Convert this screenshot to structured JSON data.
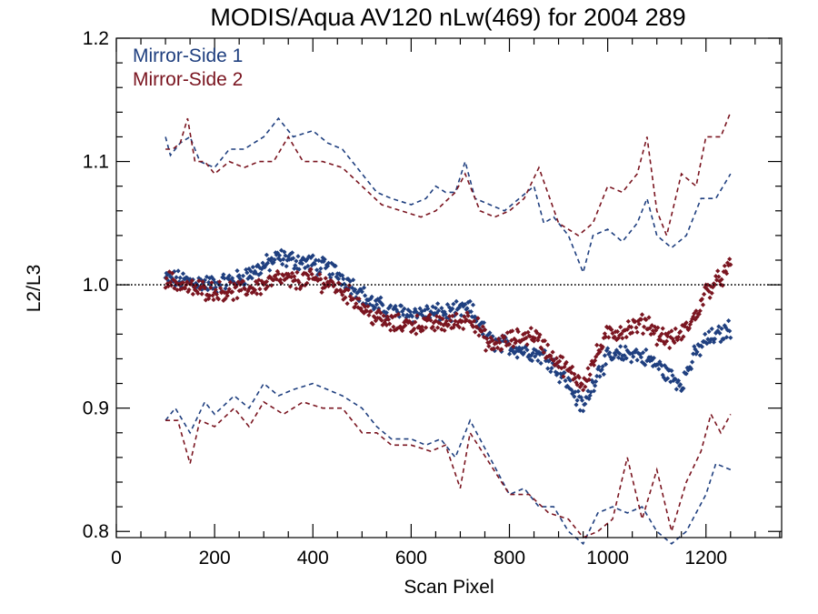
{
  "chart_data": {
    "type": "scatter",
    "title": "MODIS/Aqua AV120 nLw(469) for 2004 289",
    "xlabel": "Scan Pixel",
    "ylabel": "L2/L3",
    "xlim": [
      0,
      1354
    ],
    "ylim": [
      0.795,
      1.2
    ],
    "x_ticks": [
      0,
      200,
      400,
      600,
      800,
      1000,
      1200
    ],
    "x_tick_labels": [
      "0",
      "200",
      "400",
      "600",
      "800",
      "1000",
      "1200"
    ],
    "y_ticks": [
      0.8,
      0.9,
      1.0,
      1.1,
      1.2
    ],
    "y_tick_labels": [
      "0.8",
      "0.9",
      "1.0",
      "1.1",
      "1.2"
    ],
    "reference_line": {
      "y": 1.0,
      "style": "dotted"
    },
    "legend_position": "top-left",
    "grid": false,
    "series": [
      {
        "name": "Mirror-Side 1",
        "color": "#1f3f7f",
        "marker": "diamond",
        "mean": {
          "x": [
            100,
            150,
            200,
            250,
            300,
            330,
            360,
            400,
            440,
            480,
            520,
            560,
            600,
            650,
            700,
            720,
            760,
            800,
            850,
            880,
            920,
            950,
            980,
            1000,
            1050,
            1080,
            1100,
            1130,
            1150,
            1180,
            1200,
            1230,
            1250
          ],
          "y": [
            1.005,
            1.003,
            1.0,
            1.005,
            1.015,
            1.022,
            1.02,
            1.017,
            1.012,
            1.0,
            0.985,
            0.978,
            0.977,
            0.977,
            0.978,
            0.98,
            0.955,
            0.95,
            0.945,
            0.94,
            0.92,
            0.9,
            0.93,
            0.94,
            0.945,
            0.94,
            0.935,
            0.925,
            0.92,
            0.945,
            0.955,
            0.96,
            0.965
          ]
        },
        "upper_bound": {
          "x": [
            100,
            110,
            130,
            150,
            170,
            200,
            230,
            260,
            300,
            330,
            360,
            400,
            430,
            460,
            500,
            530,
            560,
            600,
            630,
            650,
            670,
            690,
            710,
            730,
            760,
            790,
            820,
            850,
            870,
            890,
            920,
            950,
            970,
            1000,
            1030,
            1060,
            1080,
            1100,
            1130,
            1160,
            1190,
            1220,
            1250
          ],
          "y": [
            1.12,
            1.105,
            1.115,
            1.12,
            1.1,
            1.095,
            1.11,
            1.11,
            1.12,
            1.135,
            1.12,
            1.125,
            1.115,
            1.11,
            1.09,
            1.075,
            1.07,
            1.065,
            1.07,
            1.08,
            1.075,
            1.075,
            1.1,
            1.07,
            1.065,
            1.06,
            1.07,
            1.08,
            1.05,
            1.055,
            1.04,
            1.01,
            1.04,
            1.045,
            1.035,
            1.05,
            1.07,
            1.04,
            1.03,
            1.04,
            1.07,
            1.07,
            1.09
          ]
        },
        "lower_bound": {
          "x": [
            100,
            120,
            150,
            180,
            200,
            240,
            270,
            300,
            330,
            360,
            400,
            430,
            460,
            500,
            530,
            560,
            600,
            630,
            660,
            690,
            720,
            760,
            800,
            830,
            860,
            890,
            920,
            950,
            980,
            1010,
            1040,
            1070,
            1100,
            1130,
            1160,
            1200,
            1220,
            1250
          ],
          "y": [
            0.89,
            0.9,
            0.88,
            0.905,
            0.895,
            0.91,
            0.9,
            0.92,
            0.91,
            0.915,
            0.92,
            0.915,
            0.91,
            0.9,
            0.885,
            0.875,
            0.875,
            0.87,
            0.875,
            0.86,
            0.89,
            0.86,
            0.83,
            0.835,
            0.82,
            0.82,
            0.8,
            0.79,
            0.815,
            0.82,
            0.815,
            0.82,
            0.8,
            0.79,
            0.8,
            0.83,
            0.855,
            0.85
          ]
        }
      },
      {
        "name": "Mirror-Side 2",
        "color": "#7a1520",
        "marker": "diamond",
        "mean": {
          "x": [
            100,
            150,
            200,
            250,
            300,
            330,
            360,
            400,
            440,
            480,
            520,
            560,
            600,
            650,
            700,
            720,
            760,
            800,
            850,
            880,
            920,
            950,
            980,
            1000,
            1050,
            1080,
            1100,
            1130,
            1150,
            1180,
            1200,
            1230,
            1250
          ],
          "y": [
            1.005,
            0.997,
            0.995,
            0.995,
            1.0,
            1.005,
            1.003,
            1.005,
            1.0,
            0.99,
            0.975,
            0.968,
            0.968,
            0.968,
            0.97,
            0.975,
            0.95,
            0.955,
            0.96,
            0.945,
            0.93,
            0.92,
            0.945,
            0.96,
            0.965,
            0.97,
            0.96,
            0.955,
            0.96,
            0.975,
            0.995,
            1.005,
            1.015
          ]
        },
        "upper_bound": {
          "x": [
            100,
            115,
            130,
            145,
            160,
            180,
            200,
            230,
            260,
            290,
            320,
            350,
            380,
            420,
            460,
            500,
            540,
            580,
            620,
            650,
            690,
            710,
            740,
            770,
            800,
            830,
            860,
            900,
            940,
            970,
            1000,
            1030,
            1060,
            1080,
            1100,
            1120,
            1150,
            1180,
            1200,
            1230,
            1250
          ],
          "y": [
            1.11,
            1.11,
            1.115,
            1.135,
            1.1,
            1.1,
            1.09,
            1.1,
            1.095,
            1.1,
            1.1,
            1.12,
            1.1,
            1.1,
            1.095,
            1.08,
            1.065,
            1.06,
            1.055,
            1.06,
            1.075,
            1.09,
            1.06,
            1.055,
            1.06,
            1.07,
            1.095,
            1.05,
            1.04,
            1.05,
            1.08,
            1.075,
            1.09,
            1.12,
            1.06,
            1.04,
            1.09,
            1.08,
            1.12,
            1.12,
            1.14
          ]
        },
        "lower_bound": {
          "x": [
            100,
            125,
            150,
            170,
            200,
            240,
            270,
            300,
            340,
            380,
            420,
            460,
            500,
            530,
            560,
            600,
            640,
            670,
            700,
            720,
            760,
            800,
            840,
            880,
            920,
            950,
            980,
            1010,
            1040,
            1070,
            1100,
            1130,
            1160,
            1190,
            1210,
            1230,
            1250
          ],
          "y": [
            0.89,
            0.89,
            0.855,
            0.89,
            0.885,
            0.9,
            0.885,
            0.905,
            0.895,
            0.905,
            0.9,
            0.9,
            0.88,
            0.88,
            0.87,
            0.87,
            0.865,
            0.87,
            0.835,
            0.88,
            0.855,
            0.83,
            0.83,
            0.815,
            0.81,
            0.795,
            0.8,
            0.81,
            0.86,
            0.81,
            0.85,
            0.8,
            0.84,
            0.865,
            0.895,
            0.88,
            0.895
          ]
        }
      }
    ]
  }
}
